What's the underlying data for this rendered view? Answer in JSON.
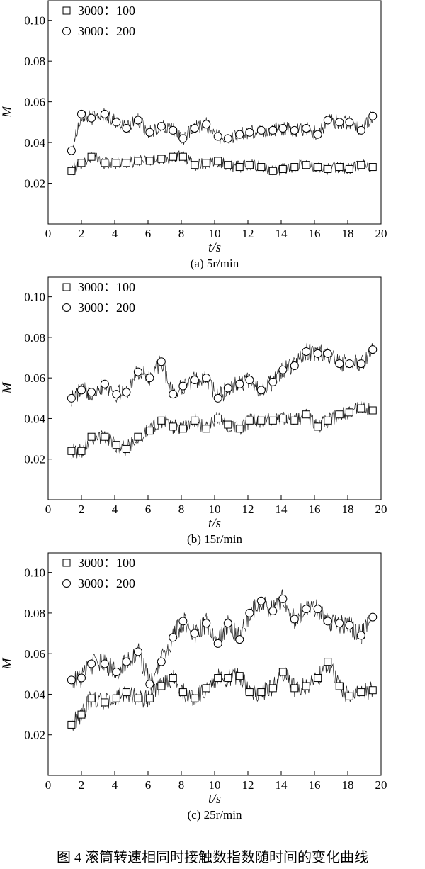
{
  "figure_caption": "图 4    滚筒转速相同时接触数指数随时间的变化曲线",
  "chart_data": [
    {
      "type": "line",
      "panel_label": "(a) 5r/min",
      "xlabel": "t/s",
      "ylabel": "M",
      "xlim": [
        0,
        20
      ],
      "ylim": [
        0,
        0.11
      ],
      "xticks": [
        0,
        2,
        4,
        6,
        8,
        10,
        12,
        14,
        16,
        18,
        20
      ],
      "yticks": [
        0.02,
        0.04,
        0.06,
        0.08,
        0.1
      ],
      "ytick_labels": [
        "0.02",
        "0.04",
        "0.06",
        "0.08",
        "0.10"
      ],
      "legend_position": "top-left",
      "series": [
        {
          "name": "3000：100",
          "marker": "square",
          "x": [
            1.4,
            2.0,
            2.6,
            3.4,
            4.1,
            4.7,
            5.4,
            6.1,
            6.8,
            7.5,
            8.1,
            8.8,
            9.5,
            10.2,
            10.8,
            11.5,
            12.1,
            12.8,
            13.5,
            14.1,
            14.8,
            15.5,
            16.2,
            16.8,
            17.5,
            18.1,
            18.8,
            19.5
          ],
          "y": [
            0.026,
            0.03,
            0.033,
            0.03,
            0.03,
            0.03,
            0.031,
            0.031,
            0.032,
            0.033,
            0.033,
            0.029,
            0.03,
            0.031,
            0.029,
            0.028,
            0.029,
            0.028,
            0.026,
            0.027,
            0.028,
            0.029,
            0.028,
            0.027,
            0.028,
            0.027,
            0.029,
            0.028
          ]
        },
        {
          "name": "3000：200",
          "marker": "circle",
          "x": [
            1.4,
            2.0,
            2.6,
            3.4,
            4.1,
            4.7,
            5.4,
            6.1,
            6.8,
            7.5,
            8.1,
            8.8,
            9.5,
            10.2,
            10.8,
            11.5,
            12.1,
            12.8,
            13.5,
            14.1,
            14.8,
            15.5,
            16.2,
            16.8,
            17.5,
            18.1,
            18.8,
            19.5
          ],
          "y": [
            0.036,
            0.054,
            0.052,
            0.054,
            0.05,
            0.047,
            0.051,
            0.045,
            0.048,
            0.046,
            0.042,
            0.047,
            0.049,
            0.043,
            0.042,
            0.044,
            0.045,
            0.046,
            0.046,
            0.047,
            0.046,
            0.047,
            0.044,
            0.051,
            0.05,
            0.05,
            0.046,
            0.053
          ]
        }
      ]
    },
    {
      "type": "line",
      "panel_label": "(b) 15r/min",
      "xlabel": "t/s",
      "ylabel": "M",
      "xlim": [
        0,
        20
      ],
      "ylim": [
        0,
        0.11
      ],
      "xticks": [
        0,
        2,
        4,
        6,
        8,
        10,
        12,
        14,
        16,
        18,
        20
      ],
      "yticks": [
        0.02,
        0.04,
        0.06,
        0.08,
        0.1
      ],
      "ytick_labels": [
        "0.02",
        "0.04",
        "0.06",
        "0.08",
        "0.10"
      ],
      "legend_position": "top-left",
      "series": [
        {
          "name": "3000：100",
          "marker": "square",
          "x": [
            1.4,
            2.0,
            2.6,
            3.4,
            4.1,
            4.7,
            5.4,
            6.1,
            6.8,
            7.5,
            8.1,
            8.8,
            9.5,
            10.2,
            10.8,
            11.5,
            12.1,
            12.8,
            13.5,
            14.1,
            14.8,
            15.5,
            16.2,
            16.8,
            17.5,
            18.1,
            18.8,
            19.5
          ],
          "y": [
            0.024,
            0.024,
            0.031,
            0.031,
            0.027,
            0.025,
            0.031,
            0.034,
            0.039,
            0.036,
            0.035,
            0.039,
            0.035,
            0.04,
            0.037,
            0.035,
            0.039,
            0.039,
            0.039,
            0.04,
            0.039,
            0.042,
            0.036,
            0.039,
            0.042,
            0.043,
            0.045,
            0.044
          ]
        },
        {
          "name": "3000：200",
          "marker": "circle",
          "x": [
            1.4,
            2.0,
            2.6,
            3.4,
            4.1,
            4.7,
            5.4,
            6.1,
            6.8,
            7.5,
            8.1,
            8.8,
            9.5,
            10.2,
            10.8,
            11.5,
            12.1,
            12.8,
            13.5,
            14.1,
            14.8,
            15.5,
            16.2,
            16.8,
            17.5,
            18.1,
            18.8,
            19.5
          ],
          "y": [
            0.05,
            0.054,
            0.053,
            0.057,
            0.052,
            0.053,
            0.063,
            0.06,
            0.068,
            0.052,
            0.056,
            0.059,
            0.06,
            0.05,
            0.055,
            0.057,
            0.059,
            0.054,
            0.058,
            0.064,
            0.066,
            0.073,
            0.072,
            0.072,
            0.067,
            0.067,
            0.067,
            0.074
          ]
        }
      ]
    },
    {
      "type": "line",
      "panel_label": "(c) 25r/min",
      "xlabel": "t/s",
      "ylabel": "M",
      "xlim": [
        0,
        20
      ],
      "ylim": [
        0,
        0.11
      ],
      "xticks": [
        0,
        2,
        4,
        6,
        8,
        10,
        12,
        14,
        16,
        18,
        20
      ],
      "yticks": [
        0.02,
        0.04,
        0.06,
        0.08,
        0.1
      ],
      "ytick_labels": [
        "0.02",
        "0.04",
        "0.06",
        "0.08",
        "0.10"
      ],
      "legend_position": "top-left",
      "series": [
        {
          "name": "3000：100",
          "marker": "square",
          "x": [
            1.4,
            2.0,
            2.6,
            3.4,
            4.1,
            4.7,
            5.4,
            6.1,
            6.8,
            7.5,
            8.1,
            8.8,
            9.5,
            10.2,
            10.8,
            11.5,
            12.1,
            12.8,
            13.5,
            14.1,
            14.8,
            15.5,
            16.2,
            16.8,
            17.5,
            18.1,
            18.8,
            19.5
          ],
          "y": [
            0.025,
            0.03,
            0.038,
            0.036,
            0.038,
            0.041,
            0.038,
            0.038,
            0.044,
            0.048,
            0.041,
            0.038,
            0.043,
            0.048,
            0.048,
            0.049,
            0.041,
            0.041,
            0.043,
            0.051,
            0.043,
            0.044,
            0.048,
            0.056,
            0.044,
            0.039,
            0.041,
            0.042
          ]
        },
        {
          "name": "3000：200",
          "marker": "circle",
          "x": [
            1.4,
            2.0,
            2.6,
            3.4,
            4.1,
            4.7,
            5.4,
            6.1,
            6.8,
            7.5,
            8.1,
            8.8,
            9.5,
            10.2,
            10.8,
            11.5,
            12.1,
            12.8,
            13.5,
            14.1,
            14.8,
            15.5,
            16.2,
            16.8,
            17.5,
            18.1,
            18.8,
            19.5
          ],
          "y": [
            0.047,
            0.048,
            0.055,
            0.055,
            0.051,
            0.056,
            0.061,
            0.045,
            0.056,
            0.068,
            0.076,
            0.07,
            0.075,
            0.065,
            0.075,
            0.067,
            0.08,
            0.086,
            0.081,
            0.087,
            0.077,
            0.082,
            0.082,
            0.076,
            0.075,
            0.074,
            0.069,
            0.078
          ]
        }
      ]
    }
  ]
}
